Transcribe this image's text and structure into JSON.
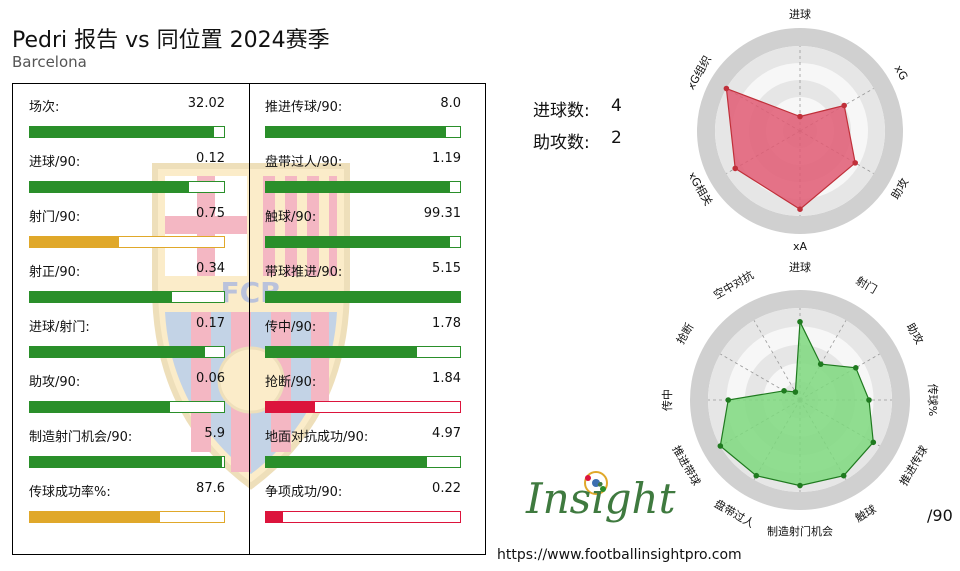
{
  "header": {
    "title": "Pedri 报告 vs 同位置 2024赛季",
    "subtitle": "Barcelona"
  },
  "colors": {
    "green": "#2a8f2a",
    "gold": "#e0a82a",
    "red": "#dc143c",
    "radar_red": "#e05a73",
    "radar_green": "#7ed87e"
  },
  "stats_left": [
    {
      "label": "场次:",
      "value": "32.02",
      "fill": 0.95,
      "color": "green"
    },
    {
      "label": "进球/90:",
      "value": "0.12",
      "fill": 0.82,
      "color": "green"
    },
    {
      "label": "射门/90:",
      "value": "0.75",
      "fill": 0.46,
      "color": "gold"
    },
    {
      "label": "射正/90:",
      "value": "0.34",
      "fill": 0.73,
      "color": "green"
    },
    {
      "label": "进球/射门:",
      "value": "0.17",
      "fill": 0.9,
      "color": "green"
    },
    {
      "label": "助攻/90:",
      "value": "0.06",
      "fill": 0.72,
      "color": "green"
    },
    {
      "label": "制造射门机会/90:",
      "value": "5.9",
      "fill": 0.99,
      "color": "green"
    },
    {
      "label": "传球成功率%:",
      "value": "87.6",
      "fill": 0.67,
      "color": "gold"
    }
  ],
  "stats_right": [
    {
      "label": "推进传球/90:",
      "value": "8.0",
      "fill": 0.93,
      "color": "green"
    },
    {
      "label": "盘带过人/90:",
      "value": "1.19",
      "fill": 0.95,
      "color": "green"
    },
    {
      "label": "触球/90:",
      "value": "99.31",
      "fill": 0.95,
      "color": "green"
    },
    {
      "label": "带球推进/90:",
      "value": "5.15",
      "fill": 1.0,
      "color": "green"
    },
    {
      "label": "传中/90:",
      "value": "1.78",
      "fill": 0.78,
      "color": "green"
    },
    {
      "label": "抢断/90:",
      "value": "1.84",
      "fill": 0.25,
      "color": "red"
    },
    {
      "label": "地面对抗成功/90:",
      "value": "4.97",
      "fill": 0.83,
      "color": "green"
    },
    {
      "label": "争项成功/90:",
      "value": "0.22",
      "fill": 0.09,
      "color": "red"
    }
  ],
  "kpis": [
    {
      "label": "进球数:",
      "value": "4"
    },
    {
      "label": "助攻数:",
      "value": "2"
    }
  ],
  "watermark": {
    "text": "FCB"
  },
  "chart_data": [
    {
      "type": "radar",
      "axes": [
        "进球",
        "xG",
        "助攻",
        "xA",
        "xG相关",
        "xG组织"
      ],
      "values": [
        0.17,
        0.6,
        0.75,
        0.92,
        0.88,
        1.0
      ],
      "range": [
        0,
        1
      ]
    },
    {
      "type": "radar",
      "axes": [
        "进球",
        "射门",
        "助攻",
        "传球%",
        "推进传球",
        "触球",
        "制造射门机会",
        "盘带过人",
        "推进带球",
        "传中",
        "抢断",
        "空中对抗"
      ],
      "values": [
        0.85,
        0.45,
        0.7,
        0.75,
        0.92,
        0.95,
        0.93,
        0.95,
        1.0,
        0.78,
        0.2,
        0.1
      ],
      "range": [
        0,
        1
      ]
    }
  ],
  "footer": {
    "per90": "/90",
    "logo": "Insight",
    "url": "https://www.footballinsightpro.com"
  }
}
